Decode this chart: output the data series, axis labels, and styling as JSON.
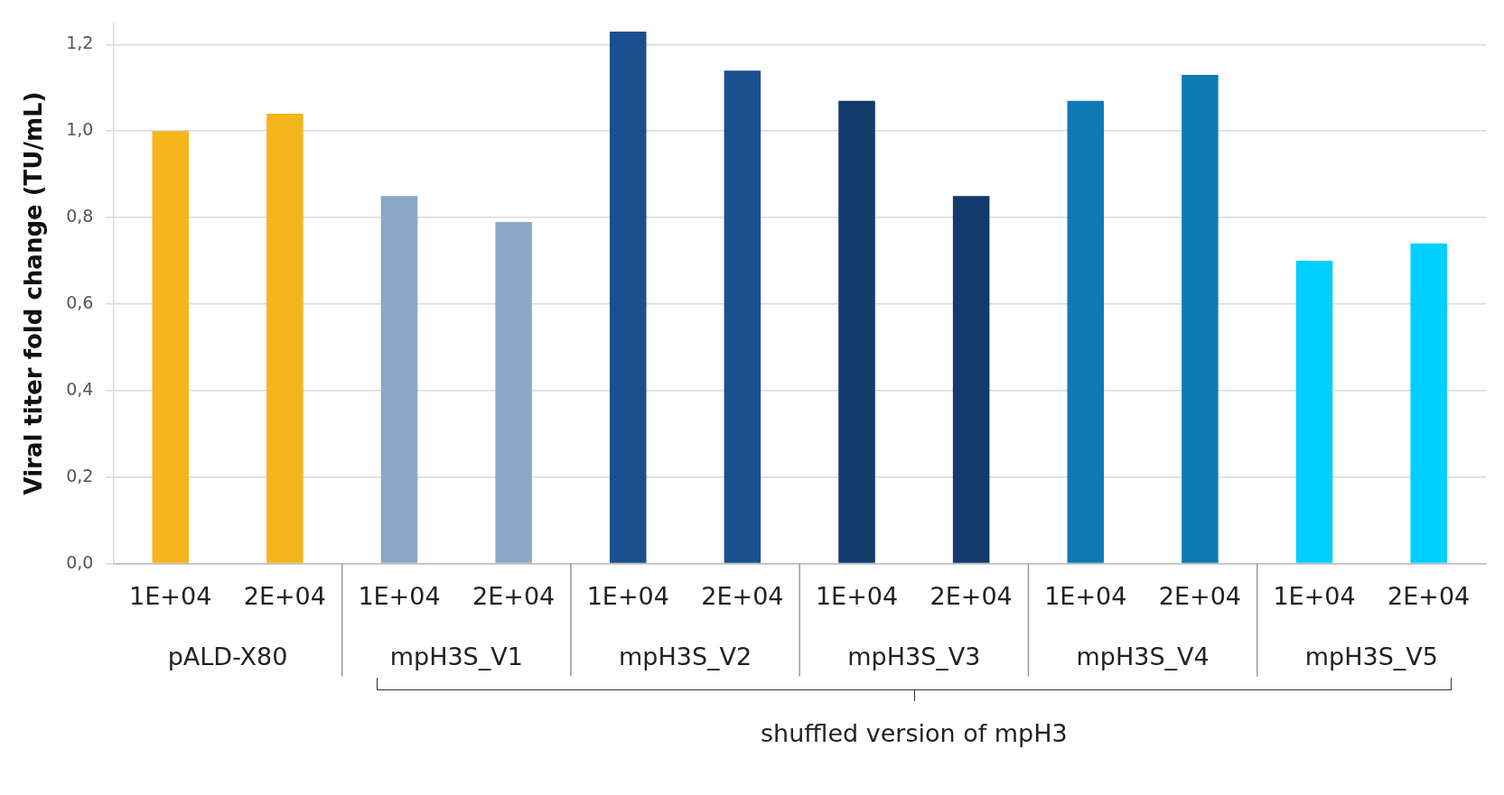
{
  "chart_data": {
    "type": "bar",
    "ylabel": "Viral titer fold change (TU/mL)",
    "categories": [
      "1E+04",
      "2E+04",
      "1E+04",
      "2E+04",
      "1E+04",
      "2E+04",
      "1E+04",
      "2E+04",
      "1E+04",
      "2E+04",
      "1E+04",
      "2E+04"
    ],
    "values": [
      1.0,
      1.04,
      0.85,
      0.79,
      1.23,
      1.14,
      1.07,
      0.85,
      1.07,
      1.13,
      0.7,
      0.74
    ],
    "colors": [
      "#f5b51c",
      "#f5b51c",
      "#8ba8c8",
      "#8ba8c8",
      "#1b4f8f",
      "#1b4f8f",
      "#123a6b",
      "#123a6b",
      "#0e7ab4",
      "#0e7ab4",
      "#00cfff",
      "#00cfff"
    ],
    "ylim": [
      0,
      1.25
    ],
    "yticks": [
      {
        "value": 0,
        "label": "0,0"
      },
      {
        "value": 0.2,
        "label": "0,2"
      },
      {
        "value": 0.4,
        "label": "0,4"
      },
      {
        "value": 0.6,
        "label": "0,6"
      },
      {
        "value": 0.8,
        "label": "0,8"
      },
      {
        "value": 1.0,
        "label": "1,0"
      },
      {
        "value": 1.2,
        "label": "1,2"
      }
    ],
    "grid": "y",
    "legend": false,
    "annotations": [
      "pALD-X80",
      "mpH3S_V1",
      "mpH3S_V2",
      "mpH3S_V3",
      "mpH3S_V4",
      "mpH3S_V5",
      "shuffled version of mpH3"
    ]
  }
}
